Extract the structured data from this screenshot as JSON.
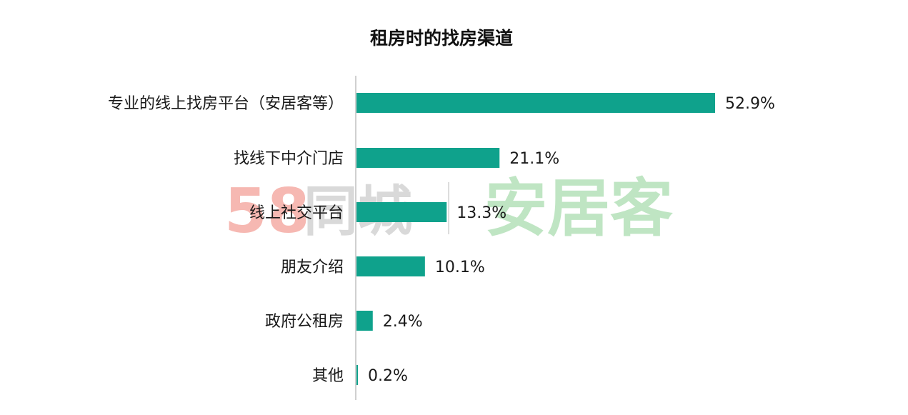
{
  "chart_data": {
    "type": "bar",
    "orientation": "horizontal",
    "title": "租房时的找房渠道",
    "xlabel": "",
    "ylabel": "",
    "categories": [
      "专业的线上找房平台（安居客等）",
      "找线下中介门店",
      "线上社交平台",
      "朋友介绍",
      "政府公租房",
      "其他"
    ],
    "values": [
      52.9,
      21.1,
      13.3,
      10.1,
      2.4,
      0.2
    ],
    "value_labels": [
      "52.9%",
      "21.1%",
      "13.3%",
      "10.1%",
      "2.4%",
      "0.2%"
    ],
    "xlim": [
      0,
      100
    ],
    "grid": false,
    "legend": "none",
    "bar_color": "#0fa28c"
  },
  "watermark": {
    "logo_58": "58",
    "text_58": "同城",
    "text_ajk": "安居客",
    "colors": {
      "five": "#f6b8b2",
      "eight_blue": "#a9cff2",
      "eight_orange": "#f8d2a9",
      "tongcheng": "#d9d9d9",
      "anjuke": "#bfe5c3"
    }
  }
}
